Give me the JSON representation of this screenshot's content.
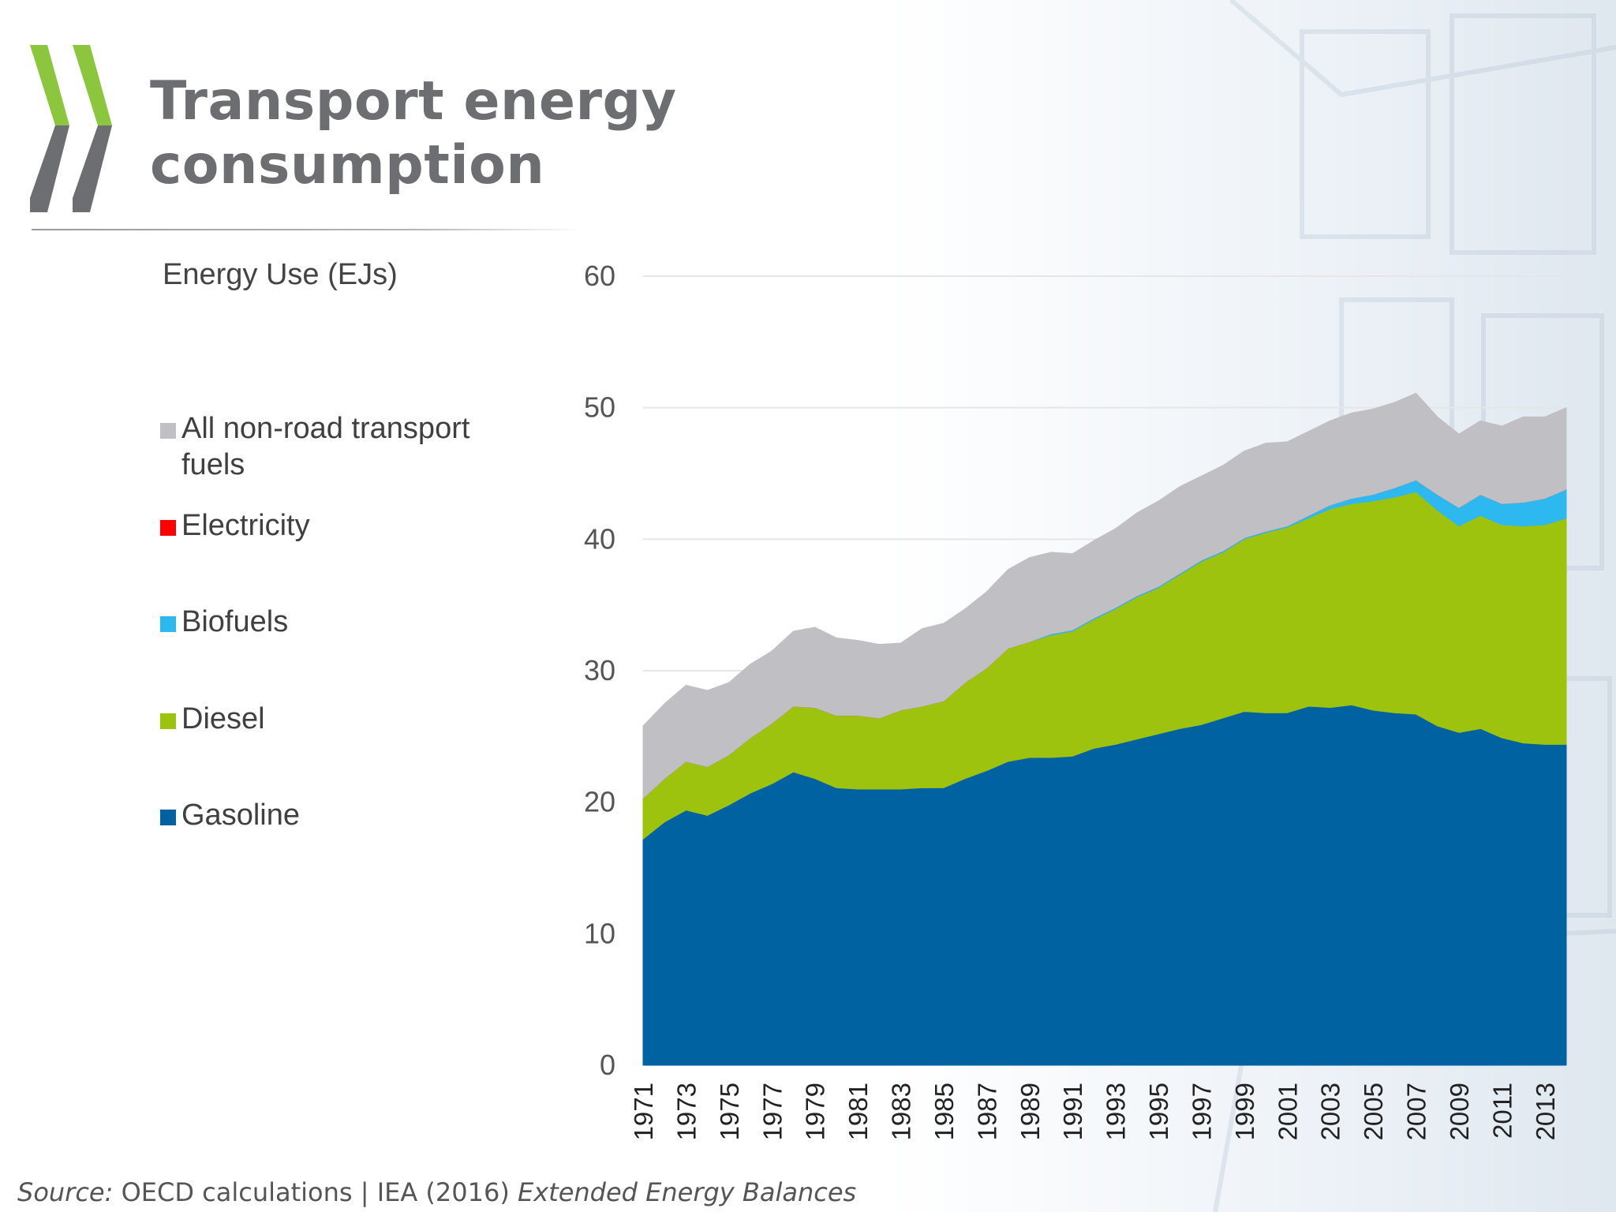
{
  "page": {
    "title_lines": [
      "Transport energy",
      "consumption"
    ],
    "unit_label": "Energy Use (EJs)",
    "source": {
      "prefix": "Source:",
      "text": " OECD calculations | IEA (2016) ",
      "publication": "Extended Energy Balances"
    }
  },
  "colors": {
    "title": "#6d6e71",
    "logo_green": "#8cc63f",
    "logo_grey": "#6d6e71",
    "gridline": "#e6e6e6"
  },
  "legend": [
    {
      "label": "All non-road transport fuels",
      "color": "#c0bfc3"
    },
    {
      "label": "Electricity",
      "color": "#ff0000"
    },
    {
      "label": "Biofuels",
      "color": "#2eb8f0"
    },
    {
      "label": "Diesel",
      "color": "#9dc30e"
    },
    {
      "label": "Gasoline",
      "color": "#0062a0"
    }
  ],
  "chart_data": {
    "type": "area",
    "stacked": true,
    "title": "",
    "xlabel": "",
    "ylabel": "Energy Use (EJs)",
    "ylim": [
      0,
      60
    ],
    "yticks": [
      0,
      10,
      20,
      30,
      40,
      50,
      60
    ],
    "grid": "horizontal",
    "legend_position": "left",
    "x": [
      1971,
      1972,
      1973,
      1974,
      1975,
      1976,
      1977,
      1978,
      1979,
      1980,
      1981,
      1982,
      1983,
      1984,
      1985,
      1986,
      1987,
      1988,
      1989,
      1990,
      1991,
      1992,
      1993,
      1994,
      1995,
      1996,
      1997,
      1998,
      1999,
      2000,
      2001,
      2002,
      2003,
      2004,
      2005,
      2006,
      2007,
      2008,
      2009,
      2010,
      2011,
      2012,
      2013,
      2014
    ],
    "xtick_labels": [
      "1971",
      "1973",
      "1975",
      "1977",
      "1979",
      "1981",
      "1983",
      "1985",
      "1987",
      "1989",
      "1991",
      "1993",
      "1995",
      "1997",
      "1999",
      "2001",
      "2003",
      "2005",
      "2007",
      "2009",
      "2011",
      "2013"
    ],
    "series": [
      {
        "name": "Gasoline",
        "color": "#0062a0",
        "values": [
          17.2,
          18.5,
          19.4,
          19.0,
          19.8,
          20.7,
          21.4,
          22.3,
          21.8,
          21.1,
          21.0,
          21.0,
          21.0,
          21.1,
          21.1,
          21.8,
          22.4,
          23.1,
          23.4,
          23.4,
          23.5,
          24.1,
          24.4,
          24.8,
          25.2,
          25.6,
          25.9,
          26.4,
          26.9,
          26.8,
          26.8,
          27.3,
          27.2,
          27.4,
          27.0,
          26.8,
          26.7,
          25.8,
          25.3,
          25.6,
          24.9,
          24.5,
          24.4,
          24.4
        ]
      },
      {
        "name": "Diesel",
        "color": "#9dc30e",
        "values": [
          3.1,
          3.3,
          3.7,
          3.7,
          3.8,
          4.2,
          4.6,
          5.0,
          5.4,
          5.5,
          5.6,
          5.4,
          6.0,
          6.2,
          6.6,
          7.3,
          7.8,
          8.6,
          8.8,
          9.3,
          9.5,
          9.8,
          10.3,
          10.8,
          11.1,
          11.7,
          12.4,
          12.6,
          13.1,
          13.7,
          14.1,
          14.3,
          15.1,
          15.3,
          15.9,
          16.4,
          16.9,
          16.4,
          15.7,
          16.2,
          16.2,
          16.5,
          16.7,
          17.2
        ]
      },
      {
        "name": "Biofuels",
        "color": "#2eb8f0",
        "values": [
          0,
          0,
          0,
          0,
          0,
          0,
          0,
          0,
          0,
          0,
          0,
          0,
          0,
          0,
          0,
          0,
          0,
          0,
          0,
          0.1,
          0.1,
          0.1,
          0.1,
          0.1,
          0.1,
          0.1,
          0.1,
          0.1,
          0.1,
          0.1,
          0.1,
          0.2,
          0.3,
          0.4,
          0.5,
          0.7,
          0.9,
          1.2,
          1.4,
          1.6,
          1.6,
          1.8,
          2.0,
          2.2
        ]
      },
      {
        "name": "Electricity",
        "color": "#ff0000",
        "values": [
          0,
          0,
          0,
          0,
          0,
          0,
          0,
          0,
          0,
          0,
          0,
          0,
          0,
          0,
          0,
          0,
          0,
          0,
          0,
          0,
          0,
          0,
          0,
          0,
          0,
          0,
          0,
          0,
          0,
          0,
          0,
          0,
          0,
          0,
          0,
          0,
          0,
          0,
          0,
          0,
          0,
          0,
          0,
          0
        ]
      },
      {
        "name": "All non-road transport fuels",
        "color": "#c0bfc3",
        "values": [
          5.5,
          5.7,
          5.8,
          5.8,
          5.5,
          5.6,
          5.5,
          5.7,
          6.1,
          5.9,
          5.7,
          5.6,
          5.1,
          5.9,
          5.9,
          5.6,
          5.8,
          6.0,
          6.4,
          6.2,
          5.8,
          5.9,
          6.0,
          6.3,
          6.5,
          6.6,
          6.4,
          6.5,
          6.6,
          6.7,
          6.4,
          6.4,
          6.4,
          6.5,
          6.5,
          6.5,
          6.6,
          5.9,
          5.6,
          5.6,
          5.9,
          6.5,
          6.2,
          6.2
        ]
      }
    ]
  }
}
